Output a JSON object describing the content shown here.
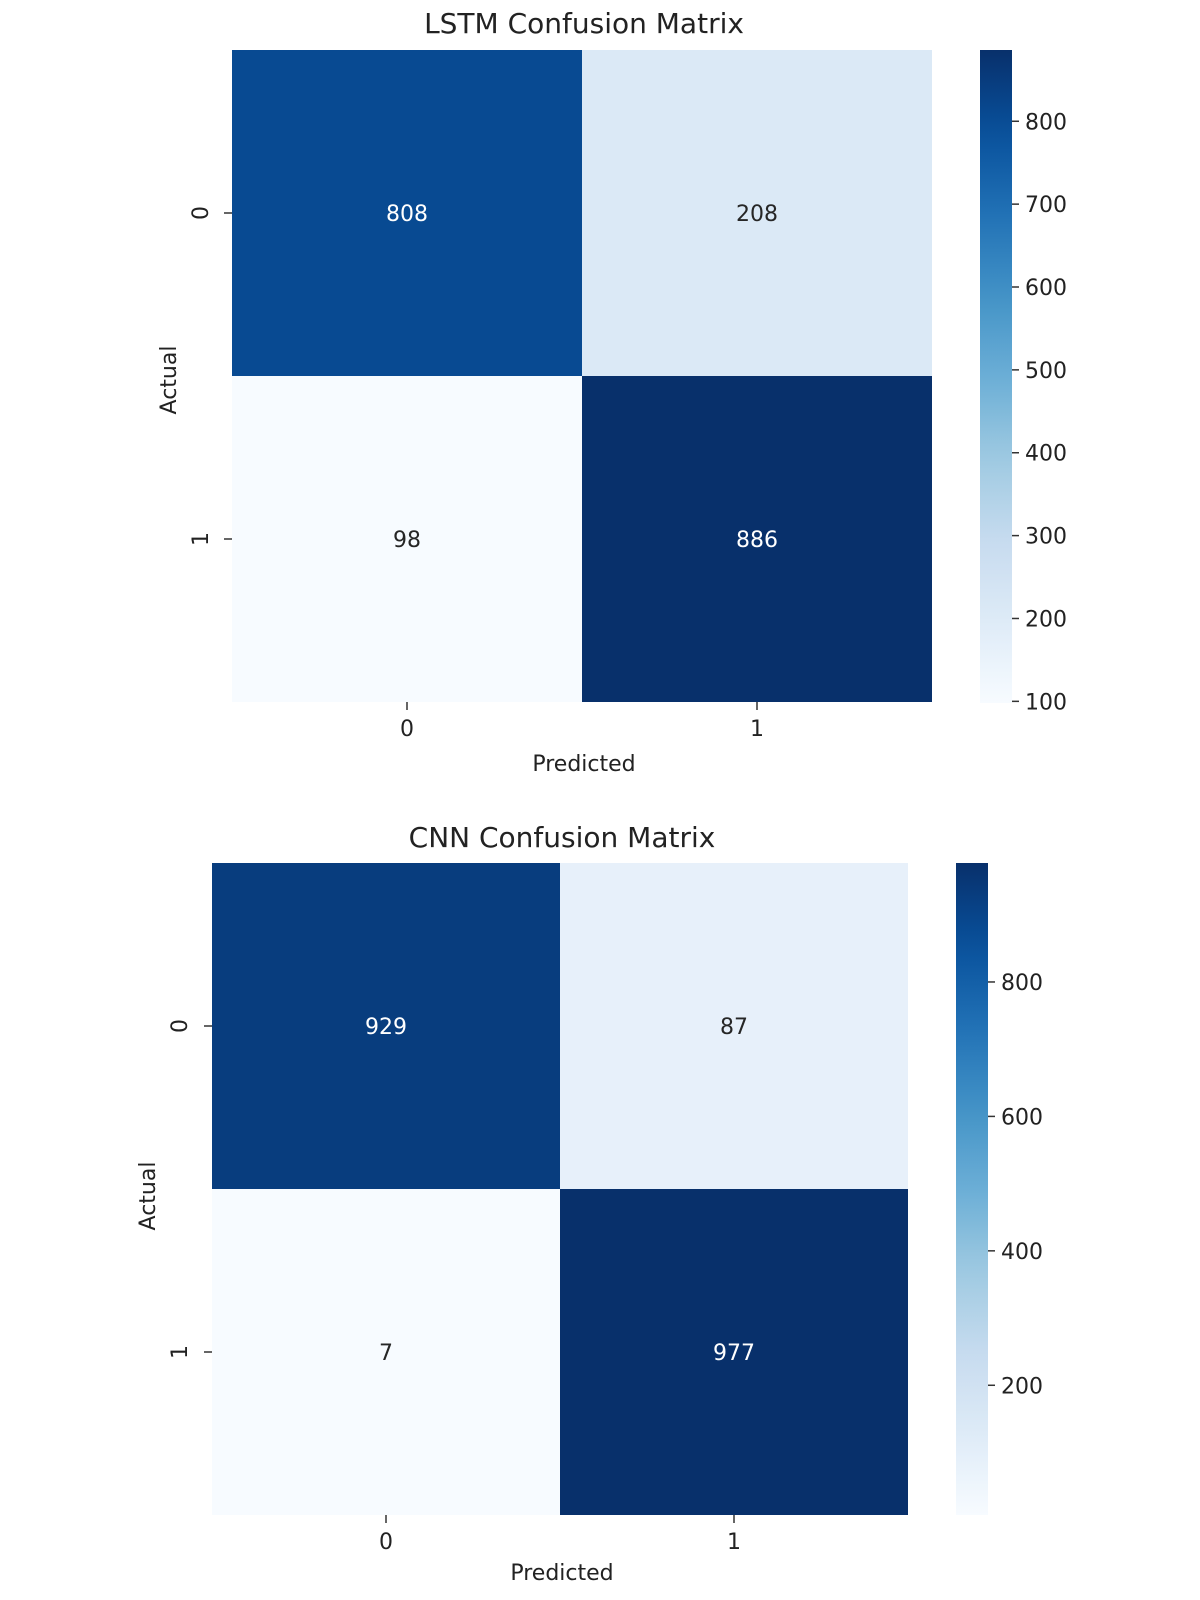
{
  "chart_data": [
    {
      "type": "heatmap",
      "title": "LSTM Confusion Matrix",
      "xlabel": "Predicted",
      "ylabel": "Actual",
      "x_categories": [
        "0",
        "1"
      ],
      "y_categories": [
        "0",
        "1"
      ],
      "values": [
        [
          808,
          208
        ],
        [
          98,
          886
        ]
      ],
      "colormap": "Blues",
      "color_range": [
        98,
        886
      ],
      "colorbar_ticks": [
        100,
        200,
        300,
        400,
        500,
        600,
        700,
        800
      ],
      "colorbar_tick_labels": [
        "100",
        "200",
        "300",
        "400",
        "500",
        "600",
        "700",
        "800"
      ]
    },
    {
      "type": "heatmap",
      "title": "CNN Confusion Matrix",
      "xlabel": "Predicted",
      "ylabel": "Actual",
      "x_categories": [
        "0",
        "1"
      ],
      "y_categories": [
        "0",
        "1"
      ],
      "values": [
        [
          929,
          87
        ],
        [
          7,
          977
        ]
      ],
      "colormap": "Blues",
      "color_range": [
        7,
        977
      ],
      "colorbar_ticks": [
        200,
        400,
        600,
        800
      ],
      "colorbar_tick_labels": [
        "200",
        "400",
        "600",
        "800"
      ]
    }
  ]
}
